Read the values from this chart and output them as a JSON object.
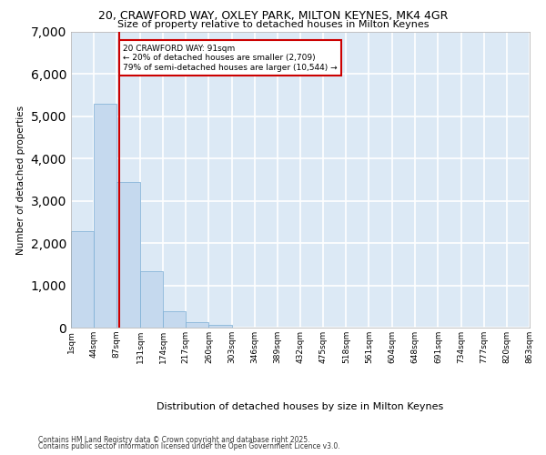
{
  "title_line1": "20, CRAWFORD WAY, OXLEY PARK, MILTON KEYNES, MK4 4GR",
  "title_line2": "Size of property relative to detached houses in Milton Keynes",
  "xlabel": "Distribution of detached houses by size in Milton Keynes",
  "ylabel": "Number of detached properties",
  "annotation_title": "20 CRAWFORD WAY: 91sqm",
  "annotation_line2": "← 20% of detached houses are smaller (2,709)",
  "annotation_line3": "79% of semi-detached houses are larger (10,544) →",
  "footer_line1": "Contains HM Land Registry data © Crown copyright and database right 2025.",
  "footer_line2": "Contains public sector information licensed under the Open Government Licence v3.0.",
  "property_size_sqm": 91,
  "bar_color": "#c5d9ee",
  "bar_edge_color": "#7aadd4",
  "vline_color": "#cc0000",
  "annotation_box_color": "#cc0000",
  "background_color": "#dce9f5",
  "grid_color": "#ffffff",
  "bin_edges": [
    1,
    44,
    87,
    131,
    174,
    217,
    260,
    303,
    346,
    389,
    432,
    475,
    518,
    561,
    604,
    648,
    691,
    734,
    777,
    820,
    863
  ],
  "bin_labels": [
    "1sqm",
    "44sqm",
    "87sqm",
    "131sqm",
    "174sqm",
    "217sqm",
    "260sqm",
    "303sqm",
    "346sqm",
    "389sqm",
    "432sqm",
    "475sqm",
    "518sqm",
    "561sqm",
    "604sqm",
    "648sqm",
    "691sqm",
    "734sqm",
    "777sqm",
    "820sqm",
    "863sqm"
  ],
  "bar_heights": [
    2280,
    5300,
    3450,
    1330,
    390,
    120,
    55,
    0,
    0,
    0,
    0,
    0,
    0,
    0,
    0,
    0,
    0,
    0,
    0,
    0
  ],
  "ylim": [
    0,
    7000
  ],
  "yticks": [
    0,
    1000,
    2000,
    3000,
    4000,
    5000,
    6000,
    7000
  ]
}
